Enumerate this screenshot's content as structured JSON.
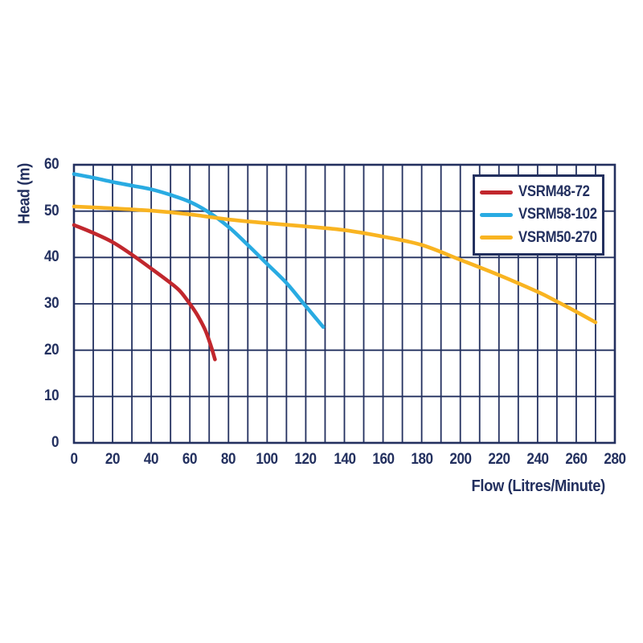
{
  "page": {
    "background": "#ffffff"
  },
  "colors": {
    "text": "#23305f",
    "grid": "#23305f",
    "axis_border": "#23305f",
    "legend_border": "#23305f",
    "background": "#ffffff"
  },
  "chart_data": {
    "type": "line",
    "title": "",
    "xlabel": "Flow (Litres/Minute)",
    "ylabel": "Head (m)",
    "xlim": [
      0,
      280
    ],
    "ylim": [
      0,
      60
    ],
    "x_ticks": [
      0,
      20,
      40,
      60,
      80,
      100,
      120,
      140,
      160,
      180,
      200,
      220,
      240,
      260,
      280
    ],
    "y_ticks": [
      0,
      10,
      20,
      30,
      40,
      50,
      60
    ],
    "x_grid_step": 10,
    "y_grid_step": 10,
    "grid": true,
    "legend_position": "top-right",
    "series": [
      {
        "name": "VSRM48-72",
        "color": "#c1272d",
        "points": [
          [
            0,
            47
          ],
          [
            10,
            45.3
          ],
          [
            20,
            43.3
          ],
          [
            30,
            40.6
          ],
          [
            40,
            37.6
          ],
          [
            50,
            34.5
          ],
          [
            55,
            32.7
          ],
          [
            60,
            30
          ],
          [
            64,
            27.5
          ],
          [
            68,
            24.3
          ],
          [
            71,
            20.8
          ],
          [
            73,
            18
          ]
        ]
      },
      {
        "name": "VSRM58-102",
        "color": "#29abe2",
        "points": [
          [
            0,
            58
          ],
          [
            10,
            57.2
          ],
          [
            20,
            56.3
          ],
          [
            30,
            55.5
          ],
          [
            40,
            54.7
          ],
          [
            50,
            53.5
          ],
          [
            60,
            52
          ],
          [
            70,
            49.7
          ],
          [
            80,
            46.6
          ],
          [
            90,
            42.7
          ],
          [
            100,
            38.6
          ],
          [
            110,
            34.5
          ],
          [
            119,
            30
          ],
          [
            129,
            25
          ]
        ]
      },
      {
        "name": "VSRM50-270",
        "color": "#f9b421",
        "points": [
          [
            0,
            51
          ],
          [
            20,
            50.6
          ],
          [
            40,
            50.1
          ],
          [
            60,
            49.3
          ],
          [
            80,
            48.2
          ],
          [
            100,
            47.4
          ],
          [
            120,
            46.7
          ],
          [
            140,
            45.9
          ],
          [
            160,
            44.5
          ],
          [
            180,
            42.7
          ],
          [
            200,
            39.5
          ],
          [
            220,
            36.2
          ],
          [
            240,
            32.6
          ],
          [
            250,
            30.5
          ],
          [
            260,
            28.3
          ],
          [
            270,
            26
          ]
        ]
      }
    ]
  }
}
